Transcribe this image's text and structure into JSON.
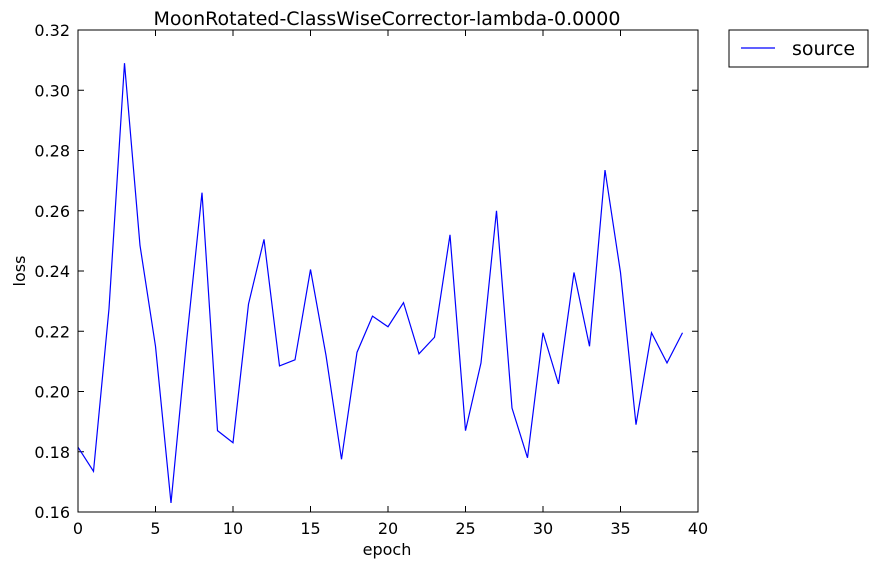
{
  "chart_data": {
    "type": "line",
    "title": "MoonRotated-ClassWiseCorrector-lambda-0.0000",
    "xlabel": "epoch",
    "ylabel": "loss",
    "xlim": [
      0,
      40
    ],
    "ylim": [
      0.16,
      0.32
    ],
    "xticks": [
      "0",
      "5",
      "10",
      "15",
      "20",
      "25",
      "30",
      "35",
      "40"
    ],
    "yticks": [
      "0.16",
      "0.18",
      "0.20",
      "0.22",
      "0.24",
      "0.26",
      "0.28",
      "0.30",
      "0.32"
    ],
    "grid": false,
    "legend_position": "outside-top-right",
    "series": [
      {
        "name": "source",
        "color": "#0000ff",
        "x": [
          0,
          1,
          2,
          3,
          4,
          5,
          6,
          7,
          8,
          9,
          10,
          11,
          12,
          13,
          14,
          15,
          16,
          17,
          18,
          19,
          20,
          21,
          22,
          23,
          24,
          25,
          26,
          27,
          28,
          29,
          30,
          31,
          32,
          33,
          34,
          35,
          36,
          37,
          38,
          39
        ],
        "y": [
          0.1815,
          0.1735,
          0.2275,
          0.309,
          0.2485,
          0.215,
          0.163,
          0.2165,
          0.266,
          0.187,
          0.183,
          0.229,
          0.2505,
          0.2085,
          0.2105,
          0.2405,
          0.212,
          0.1775,
          0.213,
          0.225,
          0.2215,
          0.2295,
          0.2125,
          0.218,
          0.252,
          0.187,
          0.2095,
          0.26,
          0.1945,
          0.178,
          0.2195,
          0.2025,
          0.2395,
          0.215,
          0.2735,
          0.2395,
          0.189,
          0.2195,
          0.2095,
          0.2195
        ]
      }
    ]
  }
}
